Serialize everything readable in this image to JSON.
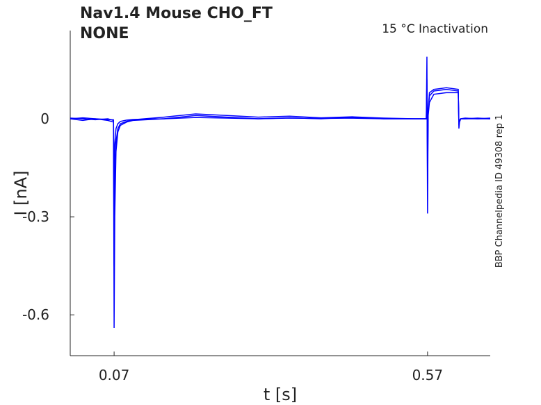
{
  "chart_data": {
    "type": "line",
    "title": "Nav1.4  Mouse  CHO_FT",
    "subtitle": "NONE",
    "annotation": "15 °C  Inactivation",
    "side_note": "BBP Channelpedia ID 49308 rep 1",
    "x_label": "t [s]",
    "y_label": "I [nA]",
    "x": [
      0,
      0.02,
      0.04,
      0.06,
      0.069,
      0.07,
      0.071,
      0.073,
      0.076,
      0.08,
      0.09,
      0.1,
      0.15,
      0.2,
      0.25,
      0.3,
      0.35,
      0.4,
      0.45,
      0.5,
      0.55,
      0.568,
      0.569,
      0.57,
      0.571,
      0.573,
      0.58,
      0.6,
      0.619,
      0.62,
      0.621,
      0.623,
      0.63,
      0.65,
      0.67
    ],
    "series": [
      {
        "color": "#0000ff",
        "values": [
          0,
          -0.005,
          0,
          -0.005,
          -0.01,
          -0.64,
          -0.3,
          -0.1,
          -0.04,
          -0.02,
          -0.01,
          -0.005,
          0,
          0.01,
          0.005,
          0,
          0.003,
          0,
          0.005,
          0,
          0,
          0,
          0.19,
          -0.29,
          0.03,
          0.08,
          0.09,
          0.095,
          0.09,
          -0.03,
          -0.01,
          0,
          0,
          0.002,
          0
        ]
      },
      {
        "color": "#0000ff",
        "values": [
          0.002,
          0,
          -0.003,
          0,
          -0.005,
          -0.45,
          -0.2,
          -0.07,
          -0.03,
          -0.015,
          -0.008,
          -0.003,
          0.005,
          0.015,
          0.01,
          0.005,
          0.008,
          0.003,
          0.006,
          0.002,
          0,
          0,
          0.12,
          -0.2,
          0.02,
          0.07,
          0.085,
          0.09,
          0.085,
          -0.02,
          -0.008,
          0,
          0.002,
          0,
          0
        ]
      },
      {
        "color": "#0000ff",
        "values": [
          0,
          0.003,
          0,
          -0.002,
          -0.003,
          -0.2,
          -0.08,
          -0.03,
          -0.015,
          -0.008,
          -0.004,
          -0.002,
          0,
          0.004,
          0.002,
          0,
          0.002,
          0.001,
          0.002,
          0,
          0,
          0,
          0.06,
          -0.1,
          0.01,
          0.05,
          0.075,
          0.08,
          0.08,
          -0.01,
          -0.004,
          0,
          0,
          0,
          0.002
        ]
      }
    ],
    "xlim": [
      0,
      0.67
    ],
    "ylim": [
      -0.725,
      0.27
    ],
    "xticks": [
      0.07,
      0.57
    ],
    "yticks": [
      -0.6,
      -0.3,
      0
    ],
    "grid": false
  }
}
